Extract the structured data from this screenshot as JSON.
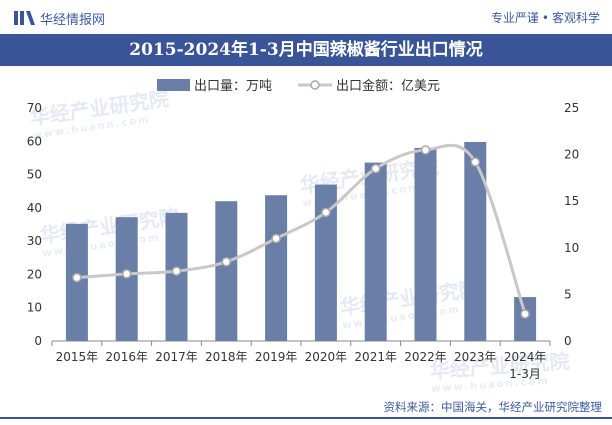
{
  "header": {
    "brand": "华经情报网",
    "slogan_left": "专业严谨",
    "slogan_dot": "•",
    "slogan_right": "客观科学"
  },
  "footer": {
    "source": "资料来源：中国海关，华经产业研究院整理"
  },
  "watermarks": [
    {
      "cn": "华经产业研究院",
      "en": "www.huaon.com"
    },
    {
      "cn": "华经产业研究院",
      "en": "www.huaon.com"
    },
    {
      "cn": "华经产业研究院",
      "en": "www.huaon.com"
    },
    {
      "cn": "华经产业研究院",
      "en": "www.huaon.com"
    },
    {
      "cn": "华经产业研究院",
      "en": "www.huaon.com"
    }
  ],
  "colors": {
    "accent": "#3a5597",
    "bar": "#6a7fa8",
    "line": "#c8c8c8",
    "marker_fill": "#ffffff",
    "marker_stroke": "#a8a8a8"
  },
  "chart_data": {
    "type": "bar",
    "title": "2015-2024年1-3月中国辣椒酱行业出口情况",
    "categories": [
      "2015年",
      "2016年",
      "2017年",
      "2018年",
      "2019年",
      "2020年",
      "2021年",
      "2022年",
      "2023年",
      "2024年\n1-3月"
    ],
    "series": [
      {
        "name": "出口量：万吨",
        "type": "bar",
        "axis": "left",
        "values": [
          35.2,
          37.2,
          38.5,
          42,
          43.8,
          47,
          53.6,
          58,
          59.8,
          13.2
        ]
      },
      {
        "name": "出口金额：亿美元",
        "type": "line",
        "axis": "right",
        "values": [
          6.8,
          7.2,
          7.5,
          8.5,
          11,
          13.8,
          18.5,
          20.5,
          19.2,
          2.9
        ]
      }
    ],
    "ylim": [
      0,
      70
    ],
    "yticks": [
      0,
      10,
      20,
      30,
      40,
      50,
      60,
      70
    ],
    "y2lim": [
      0,
      25
    ],
    "y2ticks": [
      0,
      5,
      10,
      15,
      20,
      25
    ],
    "legend": "top-left",
    "grid": false
  }
}
